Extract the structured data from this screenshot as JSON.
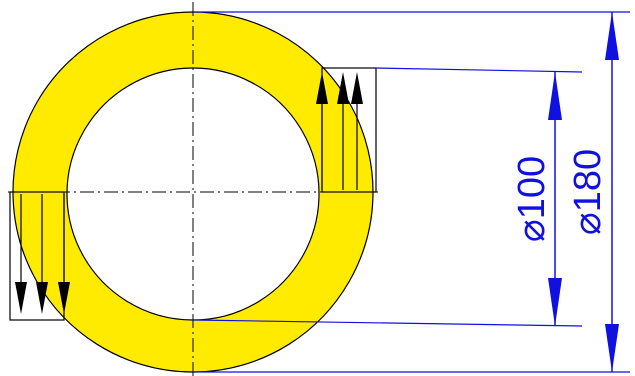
{
  "colors": {
    "ring_fill": "#FFEB00",
    "outline": "#000000",
    "dimension": "#1010E0",
    "background": "#FFFFFF"
  },
  "dimensions": {
    "inner_diameter_label": "⌀100",
    "outer_diameter_label": "⌀180"
  },
  "icons": {
    "force_arrow": "arrowhead-icon"
  }
}
